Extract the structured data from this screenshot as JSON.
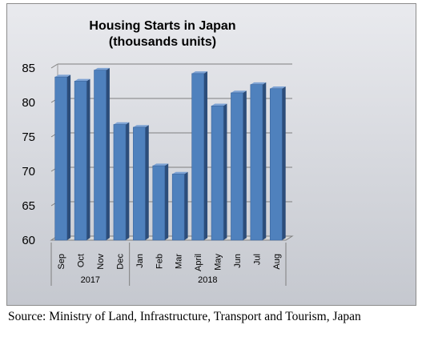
{
  "chart_data": {
    "type": "bar",
    "title": "Housing Starts in Japan",
    "subtitle": "(thousands units)",
    "categories": [
      "Sep",
      "Oct",
      "Nov",
      "Dec",
      "Jan",
      "Feb",
      "Mar",
      "April",
      "May",
      "Jun",
      "Jul",
      "Aug"
    ],
    "groups": [
      {
        "label": "2017",
        "categories": [
          "Sep",
          "Oct",
          "Nov",
          "Dec"
        ]
      },
      {
        "label": "2018",
        "categories": [
          "Jan",
          "Feb",
          "Mar",
          "April",
          "May",
          "Jun",
          "Jul",
          "Aug"
        ]
      }
    ],
    "values": [
      83.7,
      83.1,
      84.7,
      76.8,
      76.4,
      70.8,
      69.6,
      84.2,
      79.5,
      81.4,
      82.6,
      82.0
    ],
    "yticks": [
      60,
      65,
      70,
      75,
      80,
      85
    ],
    "ylim": [
      60,
      85
    ],
    "grid": true,
    "bar_color": "#4f81bd",
    "style": "3d-column"
  },
  "source_note": "Source: Ministry of Land, Infrastructure, Transport and Tourism, Japan"
}
